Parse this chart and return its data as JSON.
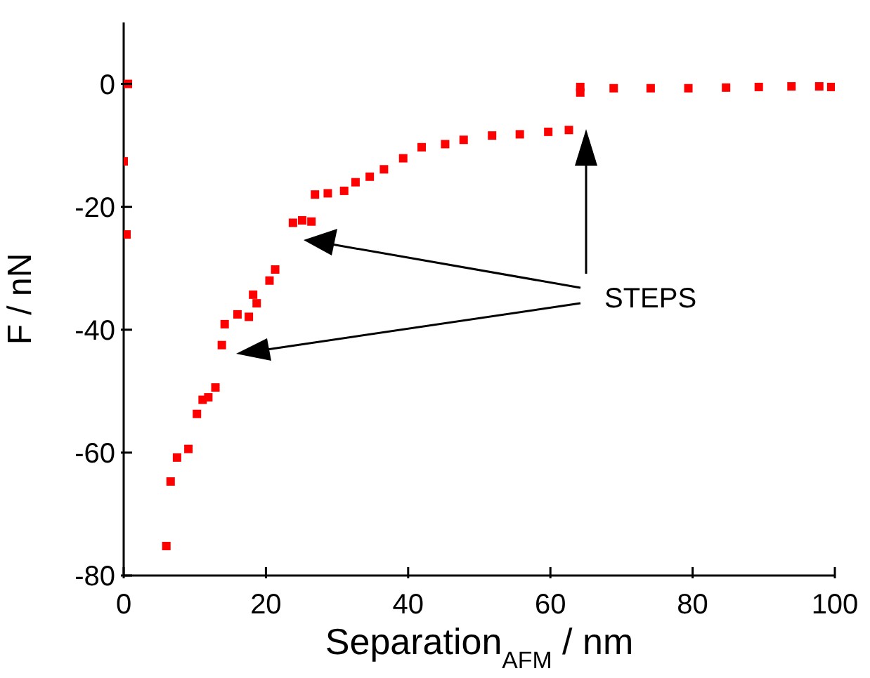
{
  "chart_data": {
    "type": "scatter",
    "xlabel": "Separation$_{AFM}$ / nm",
    "ylabel": "F / nN",
    "annotations": [
      "STEPS"
    ],
    "marker": "square",
    "xlim": [
      0,
      100
    ],
    "xticks": [
      0,
      20,
      40,
      60,
      80,
      100
    ],
    "ylim": [
      -80,
      10
    ],
    "yticks": [
      -80,
      -60,
      -40,
      -20,
      0
    ],
    "series": [
      {
        "color": "#ff0000",
        "x": [
          0.6,
          0,
          0.4,
          6,
          6.6,
          7.5,
          9.1,
          10.3,
          11.1,
          11.9,
          12.9,
          13.8,
          14.2,
          16,
          17.6,
          18.2,
          18.7,
          20.5,
          21.3,
          23.8,
          25.1,
          26.4,
          26.9,
          28.7,
          31,
          32.6,
          34.6,
          36.6,
          39.3,
          41.9,
          45.2,
          47.8,
          51.8,
          55.7,
          59.7,
          62.6,
          64.2,
          64.2,
          68.9,
          74.1,
          79.4,
          84.7,
          89.3,
          93.9,
          97.8,
          99.5
        ],
        "values": [
          0,
          -12.6,
          -24.5,
          -75.2,
          -64.7,
          -60.8,
          -59.4,
          -53.7,
          -51.4,
          -51,
          -49.4,
          -42.5,
          -39.1,
          -37.5,
          -37.9,
          -34.3,
          -35.7,
          -32,
          -30.2,
          -22.6,
          -22.2,
          -22.4,
          -18,
          -17.8,
          -17.4,
          -16,
          -15.1,
          -13.9,
          -12.1,
          -10.3,
          -9.8,
          -9.1,
          -8.4,
          -8.2,
          -7.8,
          -7.5,
          -1.4,
          -0.5,
          -0.7,
          -0.7,
          -0.7,
          -0.6,
          -0.5,
          -0.4,
          -0.4,
          -0.5
        ]
      }
    ]
  }
}
